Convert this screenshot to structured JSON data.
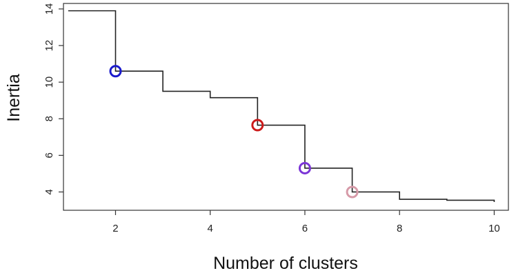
{
  "chart_data": {
    "type": "line",
    "title": "",
    "xlabel": "Number of clusters",
    "ylabel": "Inertia",
    "xlim": [
      0.9,
      10.3
    ],
    "ylim": [
      3.0,
      14.3
    ],
    "x_ticks": [
      2,
      4,
      6,
      8,
      10
    ],
    "y_ticks": [
      4,
      6,
      8,
      10,
      12,
      14
    ],
    "grid": false,
    "series": [
      {
        "style": "step",
        "color": "#222222",
        "x": [
          1,
          2,
          3,
          4,
          5,
          6,
          7,
          8,
          9,
          10
        ],
        "y": [
          13.9,
          10.6,
          9.5,
          9.15,
          7.65,
          5.3,
          4.0,
          3.6,
          3.55,
          3.45
        ]
      }
    ],
    "highlighted_points": [
      {
        "x": 2,
        "y": 10.6,
        "color": "#1a1acc"
      },
      {
        "x": 5,
        "y": 7.65,
        "color": "#cc1a1a"
      },
      {
        "x": 6,
        "y": 5.3,
        "color": "#7b35d6"
      },
      {
        "x": 7,
        "y": 4.0,
        "color": "#d69aa8"
      }
    ]
  }
}
